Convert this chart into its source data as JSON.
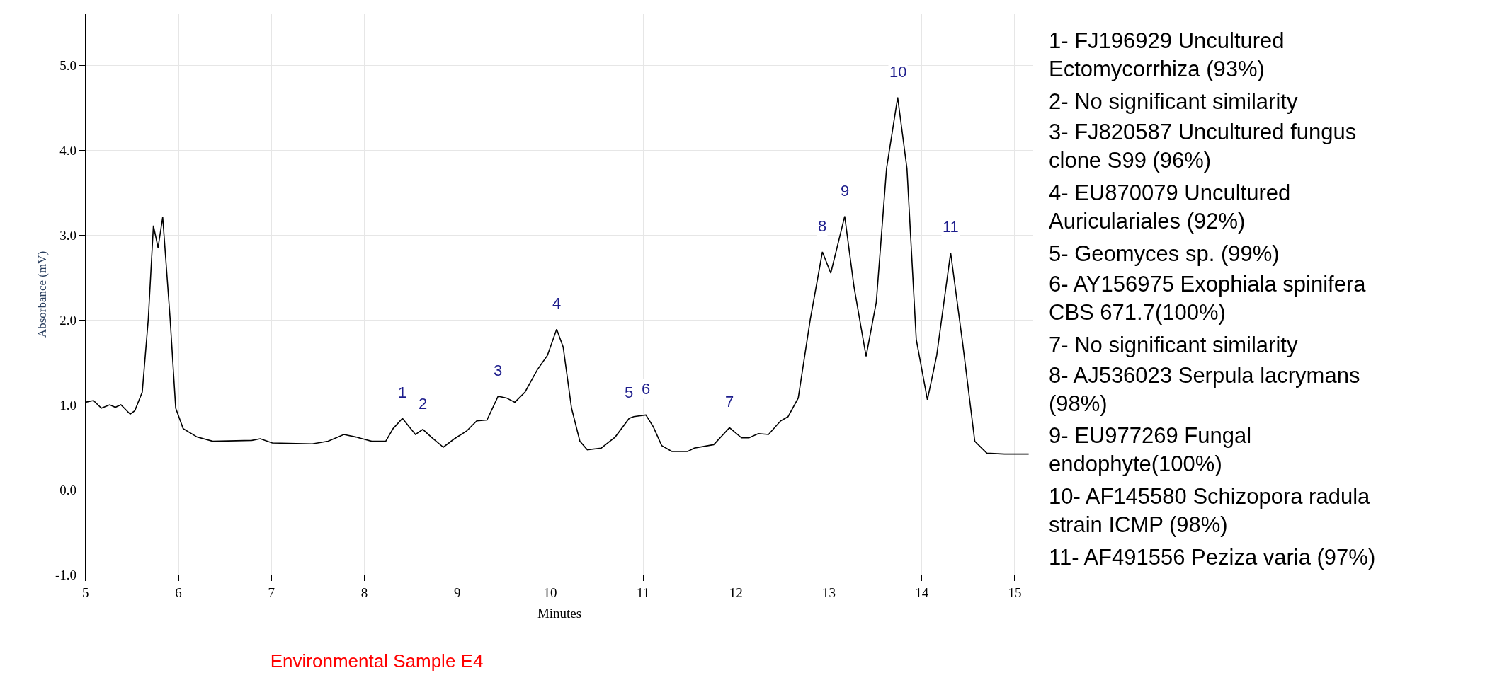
{
  "chart_data": {
    "type": "line",
    "title": "Environmental Sample E4",
    "xlabel": "Minutes",
    "ylabel": "Absorbance (mV)",
    "xlim": [
      5,
      15.2
    ],
    "ylim": [
      -1,
      5.6
    ],
    "xticks": [
      5,
      6,
      7,
      8,
      9,
      10,
      11,
      12,
      13,
      14,
      15
    ],
    "yticks": [
      {
        "value": -1,
        "label": "-1.0"
      },
      {
        "value": 0,
        "label": "0.0"
      },
      {
        "value": 1,
        "label": "1.0"
      },
      {
        "value": 2,
        "label": "2.0"
      },
      {
        "value": 3,
        "label": "3.0"
      },
      {
        "value": 4,
        "label": "4.0"
      },
      {
        "value": 5,
        "label": "5.0"
      }
    ],
    "grid": true,
    "marker": "none",
    "line_style": "solid",
    "series": [
      {
        "color": "#000000",
        "x": [
          5.0,
          5.085,
          5.17,
          5.26,
          5.32,
          5.38,
          5.48,
          5.53,
          5.61,
          5.675,
          5.73,
          5.78,
          5.83,
          5.91,
          5.97,
          6.05,
          6.2,
          6.37,
          6.79,
          6.88,
          7.01,
          7.44,
          7.61,
          7.78,
          7.91,
          8.08,
          8.23,
          8.31,
          8.41,
          8.55,
          8.63,
          8.72,
          8.85,
          8.97,
          9.1,
          9.21,
          9.32,
          9.44,
          9.53,
          9.62,
          9.73,
          9.86,
          9.97,
          10.07,
          10.14,
          10.23,
          10.32,
          10.4,
          10.55,
          10.7,
          10.85,
          10.9,
          11.03,
          11.11,
          11.2,
          11.31,
          11.48,
          11.55,
          11.76,
          11.93,
          12.06,
          12.14,
          12.24,
          12.35,
          12.48,
          12.56,
          12.67,
          12.8,
          12.93,
          13.02,
          13.17,
          13.27,
          13.4,
          13.51,
          13.62,
          13.74,
          13.84,
          13.94,
          14.06,
          14.16,
          14.31,
          14.44,
          14.57,
          14.7,
          14.89,
          15.15
        ],
        "values": [
          1.03,
          1.05,
          0.96,
          1.0,
          0.97,
          1.0,
          0.89,
          0.93,
          1.15,
          2.01,
          3.11,
          2.85,
          3.21,
          2.01,
          0.96,
          0.72,
          0.62,
          0.57,
          0.58,
          0.6,
          0.55,
          0.54,
          0.57,
          0.65,
          0.62,
          0.57,
          0.57,
          0.72,
          0.84,
          0.65,
          0.71,
          0.62,
          0.5,
          0.6,
          0.69,
          0.81,
          0.82,
          1.1,
          1.08,
          1.03,
          1.15,
          1.41,
          1.58,
          1.89,
          1.68,
          0.96,
          0.57,
          0.47,
          0.49,
          0.62,
          0.84,
          0.86,
          0.88,
          0.74,
          0.52,
          0.45,
          0.45,
          0.49,
          0.53,
          0.73,
          0.61,
          0.61,
          0.66,
          0.65,
          0.81,
          0.86,
          1.08,
          2.01,
          2.8,
          2.55,
          3.22,
          2.39,
          1.57,
          2.21,
          3.78,
          4.62,
          3.78,
          1.77,
          1.06,
          1.58,
          2.79,
          1.72,
          0.57,
          0.43,
          0.42,
          0.42
        ]
      }
    ],
    "annotations": [
      {
        "text": "1",
        "x": 8.41,
        "y": 0.84
      },
      {
        "text": "2",
        "x": 8.63,
        "y": 0.71
      },
      {
        "text": "3",
        "x": 9.44,
        "y": 1.1
      },
      {
        "text": "4",
        "x": 10.07,
        "y": 1.89
      },
      {
        "text": "5",
        "x": 10.85,
        "y": 0.84
      },
      {
        "text": "6",
        "x": 11.03,
        "y": 0.88
      },
      {
        "text": "7",
        "x": 11.93,
        "y": 0.73
      },
      {
        "text": "8",
        "x": 12.93,
        "y": 2.8
      },
      {
        "text": "9",
        "x": 13.17,
        "y": 3.22
      },
      {
        "text": "10",
        "x": 13.74,
        "y": 4.62
      },
      {
        "text": "11",
        "x": 14.31,
        "y": 2.79
      },
      "1- FJ196929 Uncultured\nEctomycorrhiza (93%)",
      "2- No significant similarity",
      "3- FJ820587 Uncultured fungus\nclone S99 (96%)",
      "4- EU870079 Uncultured\nAuriculariales (92%)",
      "5- Geomyces sp. (99%)",
      "6- AY156975 Exophiala spinifera\nCBS 671.7(100%)",
      "7- No significant similarity",
      "8- AJ536023 Serpula lacrymans\n(98%)",
      "9- EU977269 Fungal\nendophyte(100%)",
      "10- AF145580 Schizopora radula\nstrain ICMP (98%)",
      "11- AF491556 Peziza varia (97%)"
    ]
  }
}
